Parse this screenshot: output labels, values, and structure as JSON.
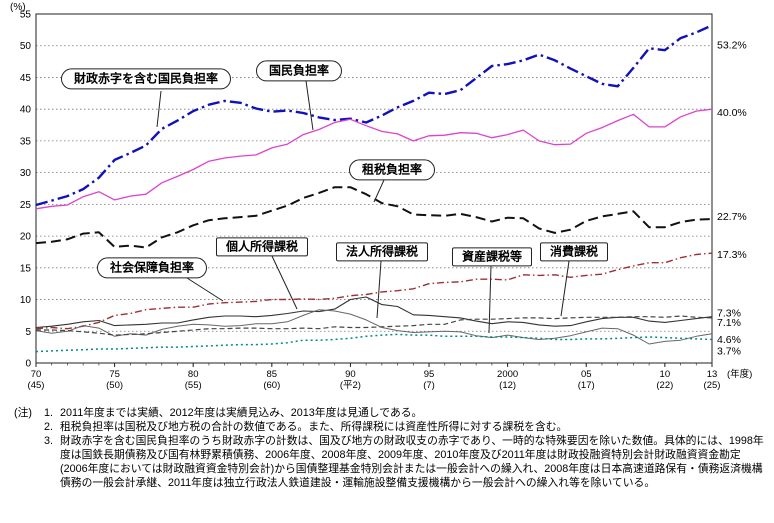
{
  "chart_data": {
    "type": "line",
    "y_axis_unit": "(%)",
    "x_axis_unit": "(年度)",
    "ylim": [
      0,
      55
    ],
    "y_tick_step": 5,
    "grid": "horizontal-dotted",
    "years": [
      1970,
      1971,
      1972,
      1973,
      1974,
      1975,
      1976,
      1977,
      1978,
      1979,
      1980,
      1981,
      1982,
      1983,
      1984,
      1985,
      1986,
      1987,
      1988,
      1989,
      1990,
      1991,
      1992,
      1993,
      1994,
      1995,
      1996,
      1997,
      1998,
      1999,
      2000,
      2001,
      2002,
      2003,
      2004,
      2005,
      2006,
      2007,
      2008,
      2009,
      2010,
      2011,
      2012,
      2013
    ],
    "x_ticks": [
      {
        "x": 1970,
        "label": "70",
        "era": "(45)"
      },
      {
        "x": 1975,
        "label": "75",
        "era": "(50)"
      },
      {
        "x": 1980,
        "label": "80",
        "era": "(55)"
      },
      {
        "x": 1985,
        "label": "85",
        "era": "(60)"
      },
      {
        "x": 1990,
        "label": "90",
        "era": "(平2)"
      },
      {
        "x": 1995,
        "label": "95",
        "era": "(7)"
      },
      {
        "x": 2000,
        "label": "2000",
        "era": "(12)"
      },
      {
        "x": 2005,
        "label": "05",
        "era": "(17)"
      },
      {
        "x": 2010,
        "label": "10",
        "era": "(22)"
      },
      {
        "x": 2013,
        "label": "13",
        "era": "(25)"
      }
    ],
    "series": [
      {
        "name": "財政赤字を含む国民負担率",
        "color": "#1111bb",
        "style": "dashdot",
        "width": 2.4,
        "end_label": "53.2%",
        "values": [
          24.9,
          25.6,
          26.3,
          27.4,
          29.2,
          32.0,
          33.1,
          34.3,
          36.9,
          38.2,
          39.7,
          40.7,
          41.3,
          41.0,
          40.1,
          39.6,
          39.8,
          39.4,
          38.7,
          38.3,
          38.5,
          37.9,
          39.0,
          40.3,
          41.3,
          42.6,
          42.4,
          43.0,
          44.9,
          46.8,
          47.1,
          47.7,
          48.6,
          47.7,
          46.4,
          45.2,
          44.0,
          43.6,
          46.5,
          49.6,
          49.3,
          51.2,
          52.1,
          53.2
        ]
      },
      {
        "name": "国民負担率",
        "color": "#dd44cc",
        "style": "solid",
        "width": 1.3,
        "end_label": "40.0%",
        "values": [
          24.3,
          24.7,
          24.9,
          26.2,
          27.0,
          25.7,
          26.3,
          26.6,
          28.4,
          29.4,
          30.5,
          31.8,
          32.3,
          32.6,
          32.8,
          33.9,
          34.5,
          36.0,
          36.8,
          37.9,
          38.4,
          37.4,
          36.5,
          36.1,
          35.0,
          35.8,
          35.9,
          36.3,
          36.2,
          35.5,
          36.0,
          36.7,
          35.0,
          34.4,
          34.5,
          36.2,
          37.1,
          38.2,
          39.2,
          37.2,
          37.2,
          38.8,
          39.7,
          40.0
        ]
      },
      {
        "name": "租税負担率",
        "color": "#111111",
        "style": "dash",
        "width": 2.0,
        "end_label": "22.7%",
        "values": [
          18.9,
          19.1,
          19.5,
          20.4,
          20.6,
          18.3,
          18.5,
          18.2,
          19.8,
          20.6,
          21.7,
          22.5,
          22.8,
          23.0,
          23.2,
          24.0,
          24.8,
          26.0,
          26.8,
          27.7,
          27.7,
          26.6,
          25.2,
          24.7,
          23.4,
          23.3,
          23.2,
          23.5,
          23.0,
          22.3,
          22.9,
          22.8,
          21.2,
          20.5,
          21.0,
          22.4,
          23.1,
          23.5,
          23.9,
          21.4,
          21.4,
          22.2,
          22.6,
          22.7
        ]
      },
      {
        "name": "社会保障負担率",
        "color": "#a03030",
        "style": "dashdotfine",
        "width": 1.4,
        "end_label": "17.3%",
        "values": [
          5.4,
          5.6,
          5.4,
          5.8,
          6.4,
          7.5,
          7.8,
          8.4,
          8.6,
          8.8,
          8.8,
          9.3,
          9.5,
          9.6,
          9.7,
          10.0,
          10.0,
          10.1,
          10.0,
          10.2,
          10.6,
          10.8,
          11.2,
          11.4,
          11.7,
          12.5,
          12.7,
          12.8,
          13.2,
          13.2,
          13.1,
          13.9,
          13.8,
          13.9,
          13.5,
          13.8,
          14.0,
          14.7,
          15.3,
          15.8,
          15.8,
          16.6,
          17.1,
          17.3
        ]
      },
      {
        "name": "個人所得課税",
        "color": "#333333",
        "style": "solid",
        "width": 1.1,
        "end_label": "7.3%",
        "values": [
          5.6,
          5.8,
          6.1,
          6.5,
          6.7,
          5.9,
          6.0,
          6.1,
          6.3,
          6.3,
          6.8,
          7.2,
          7.4,
          7.4,
          7.3,
          7.5,
          7.8,
          8.2,
          8.1,
          8.5,
          10.0,
          10.4,
          9.2,
          8.9,
          7.6,
          7.5,
          7.3,
          7.1,
          6.6,
          6.2,
          6.5,
          6.4,
          6.0,
          5.8,
          5.9,
          6.5,
          7.0,
          7.2,
          7.2,
          6.6,
          6.4,
          6.7,
          7.0,
          7.3
        ]
      },
      {
        "name": "法人所得課税",
        "color": "#666666",
        "style": "solid",
        "width": 1.0,
        "end_label": "4.6%",
        "values": [
          5.1,
          4.7,
          5.0,
          5.9,
          5.5,
          4.2,
          4.6,
          4.4,
          5.3,
          5.8,
          6.1,
          6.0,
          5.8,
          5.9,
          6.2,
          6.2,
          6.5,
          7.5,
          8.4,
          8.2,
          7.7,
          6.8,
          5.6,
          5.1,
          4.8,
          4.9,
          5.0,
          4.9,
          4.3,
          4.0,
          4.4,
          4.0,
          3.7,
          3.9,
          4.3,
          4.9,
          5.5,
          5.4,
          4.4,
          3.0,
          3.4,
          3.6,
          4.2,
          4.6
        ]
      },
      {
        "name": "消費課税",
        "color": "#444444",
        "style": "shortdash",
        "width": 1.2,
        "end_label": "7.1%",
        "values": [
          5.2,
          5.2,
          5.1,
          4.9,
          4.7,
          4.4,
          4.5,
          4.6,
          4.8,
          5.0,
          5.2,
          5.4,
          5.4,
          5.5,
          5.5,
          5.4,
          5.4,
          5.5,
          5.4,
          5.7,
          5.6,
          5.6,
          5.7,
          5.8,
          5.9,
          6.1,
          6.1,
          6.8,
          6.9,
          6.9,
          7.0,
          7.1,
          7.1,
          7.0,
          7.1,
          7.2,
          7.2,
          7.2,
          7.3,
          7.3,
          7.2,
          7.4,
          7.2,
          7.1
        ]
      },
      {
        "name": "資産課税等",
        "color": "#008888",
        "style": "dot",
        "width": 1.5,
        "end_label": "3.7%",
        "values": [
          1.8,
          1.9,
          2.0,
          2.1,
          2.2,
          2.2,
          2.3,
          2.4,
          2.5,
          2.5,
          2.6,
          2.7,
          2.8,
          2.9,
          2.9,
          3.0,
          3.2,
          3.6,
          3.6,
          3.7,
          3.9,
          4.2,
          4.4,
          4.5,
          4.4,
          4.4,
          4.2,
          4.2,
          4.2,
          4.1,
          4.1,
          4.0,
          3.9,
          3.7,
          3.7,
          3.8,
          3.8,
          3.9,
          4.0,
          4.1,
          4.0,
          3.9,
          3.8,
          3.7
        ]
      }
    ]
  },
  "notes": {
    "prefix": "(注)",
    "items": [
      {
        "num": "1.",
        "text": "2011年度までは実績、2012年度は実績見込み、2013年度は見通しである。"
      },
      {
        "num": "2.",
        "text": "租税負担率は国税及び地方税の合計の数値である。また、所得課税には資産性所得に対する課税を含む。"
      },
      {
        "num": "3.",
        "text": "財政赤字を含む国民負担率のうち財政赤字の計数は、国及び地方の財政収支の赤字であり、一時的な特殊要因を除いた数値。具体的には、1998年度は国鉄長期債務及び国有林野累積債務、2006年度、2008年度、2009年度、2010年度及び2011年度は財政投融資特別会計財政融資資金勘定(2006年度においては財政融資資金特別会計)から国債整理基金特別会計または一般会計への繰入れ、2008年度は日本高速道路保有・債務返済機構債務の一般会計承継、2011年度は独立行政法人鉄道建設・運輸施設整備支援機構から一般会計への繰入れ等を除いている。"
      }
    ]
  }
}
